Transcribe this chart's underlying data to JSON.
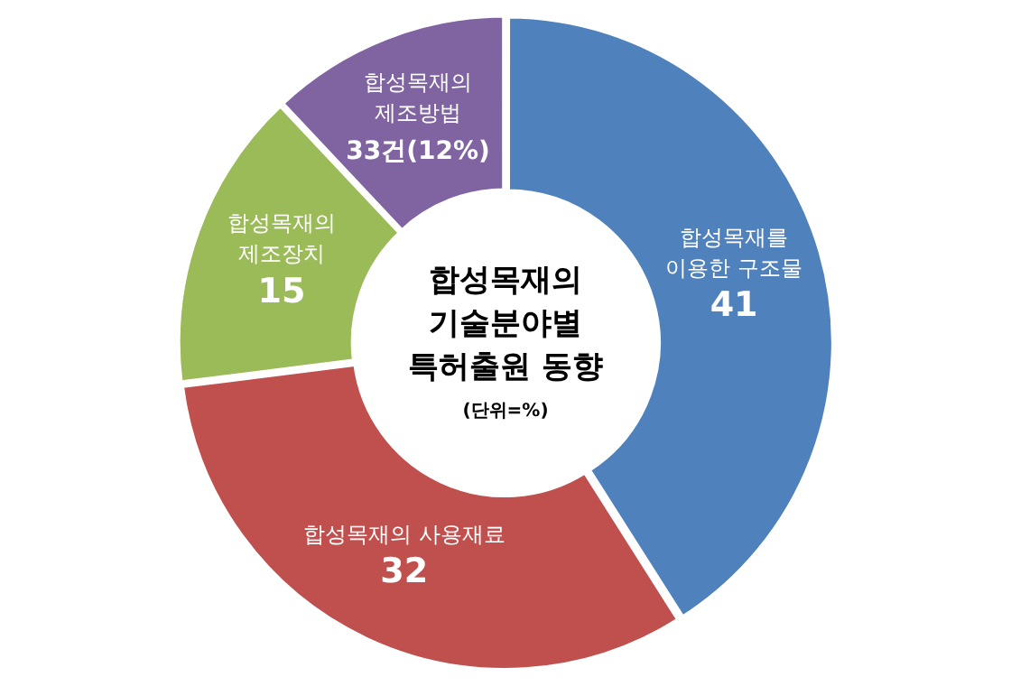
{
  "chart_data": {
    "type": "donut",
    "title": "합성목재의\n기술분야별\n특허출원 동향",
    "subtitle": "(단위=%)",
    "categories": [
      "합성목재를\n이용한 구조물",
      "합성목재의 사용재료",
      "합성목재의\n제조장치",
      "합성목재의\n제조방법"
    ],
    "values": [
      41,
      32,
      15,
      12
    ],
    "colors": [
      "#4f81bd",
      "#c0504d",
      "#9bbb59",
      "#8064a2"
    ],
    "value_labels": [
      "41",
      "32",
      "15",
      "33건(12%)"
    ],
    "legend": false
  }
}
